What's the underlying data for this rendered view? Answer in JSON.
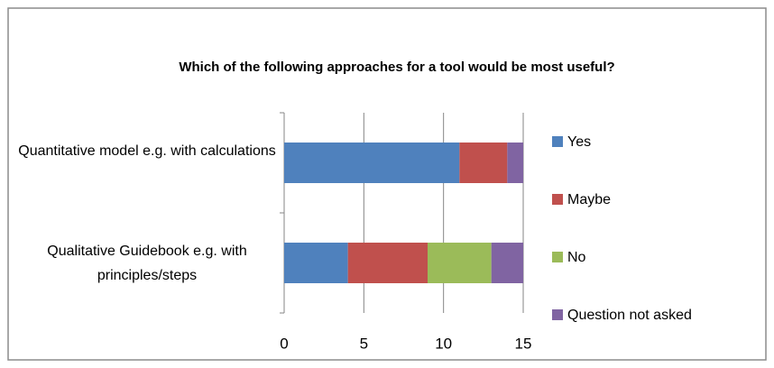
{
  "chart_data": {
    "type": "stacked-bar-horizontal",
    "title": "Which of the following approaches for a tool would be most useful?",
    "categories": [
      "Quantitative model e.g. with calculations",
      "Qualitative Guidebook e.g. with principles/steps"
    ],
    "series": [
      {
        "name": "Yes",
        "color": "#4f81bd",
        "values": [
          11,
          4
        ]
      },
      {
        "name": "Maybe",
        "color": "#c0504d",
        "values": [
          3,
          5
        ]
      },
      {
        "name": "No",
        "color": "#9bbb59",
        "values": [
          0,
          4
        ]
      },
      {
        "name": "Question not asked",
        "color": "#8064a2",
        "values": [
          1,
          2
        ]
      }
    ],
    "xlim": [
      0,
      15
    ],
    "xticks": [
      0,
      5,
      10,
      15
    ],
    "grid": true,
    "legend": "right"
  }
}
